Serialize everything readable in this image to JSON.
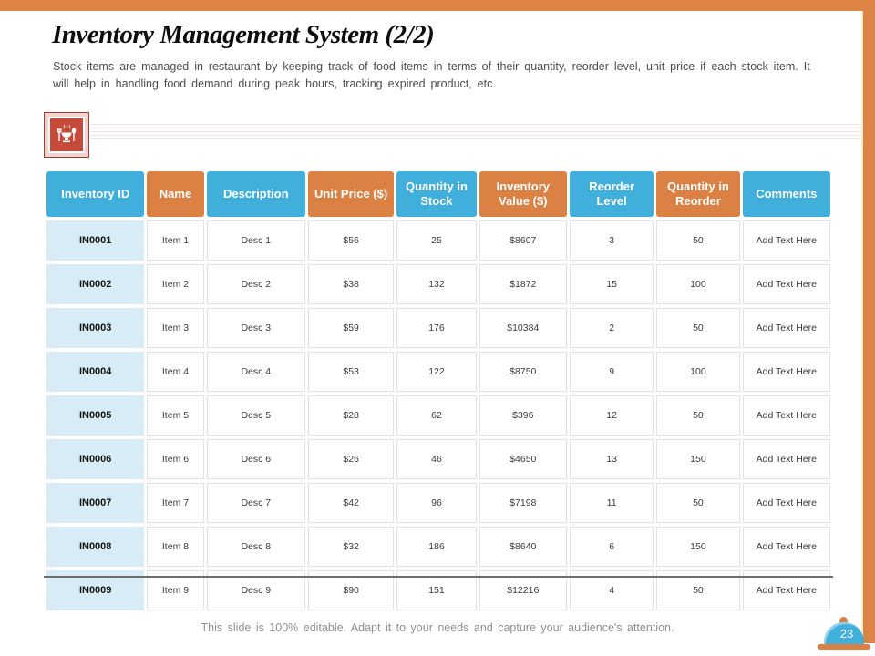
{
  "slide": {
    "title": "Inventory Management System (2/2)",
    "subtitle": "Stock items are managed in restaurant by keeping track of food items in terms of their quantity, reorder level, unit price if each stock item. It will help in handling food demand during peak hours, tracking expired product, etc.",
    "footer": "This slide is 100% editable. Adapt it to your needs and capture your audience's attention.",
    "page_number": "23"
  },
  "colors": {
    "accent_orange": "#DC8345",
    "accent_blue": "#41AFDC",
    "row_highlight_blue": "#D7ECF7",
    "icon_red": "#C54A39",
    "icon_pink_frame": "#F5D2CD",
    "cream_divider": "#F4EECB"
  },
  "icons": {
    "food_icon": "restaurant-dish-with-fork-and-spoon",
    "page_badge_icon": "food-cloche"
  },
  "table": {
    "columns": [
      {
        "label": "Inventory ID",
        "color": "blue"
      },
      {
        "label": "Name",
        "color": "orange"
      },
      {
        "label": "Description",
        "color": "blue"
      },
      {
        "label": "Unit Price ($)",
        "color": "orange"
      },
      {
        "label": "Quantity in Stock",
        "color": "blue"
      },
      {
        "label": "Inventory Value ($)",
        "color": "orange"
      },
      {
        "label": "Reorder Level",
        "color": "blue"
      },
      {
        "label": "Quantity in Reorder",
        "color": "orange"
      },
      {
        "label": "Comments",
        "color": "blue"
      }
    ],
    "rows": [
      [
        "IN0001",
        "Item 1",
        "Desc 1",
        "$56",
        "25",
        "$8607",
        "3",
        "50",
        "Add Text Here"
      ],
      [
        "IN0002",
        "Item 2",
        "Desc 2",
        "$38",
        "132",
        "$1872",
        "15",
        "100",
        "Add Text Here"
      ],
      [
        "IN0003",
        "Item 3",
        "Desc 3",
        "$59",
        "176",
        "$10384",
        "2",
        "50",
        "Add Text Here"
      ],
      [
        "IN0004",
        "Item 4",
        "Desc 4",
        "$53",
        "122",
        "$8750",
        "9",
        "100",
        "Add Text Here"
      ],
      [
        "IN0005",
        "Item 5",
        "Desc 5",
        "$28",
        "62",
        "$396",
        "12",
        "50",
        "Add Text Here"
      ],
      [
        "IN0006",
        "Item 6",
        "Desc 6",
        "$26",
        "46",
        "$4650",
        "13",
        "150",
        "Add Text Here"
      ],
      [
        "IN0007",
        "Item 7",
        "Desc 7",
        "$42",
        "96",
        "$7198",
        "11",
        "50",
        "Add Text Here"
      ],
      [
        "IN0008",
        "Item 8",
        "Desc 8",
        "$32",
        "186",
        "$8640",
        "6",
        "150",
        "Add Text Here"
      ],
      [
        "IN0009",
        "Item 9",
        "Desc 9",
        "$90",
        "151",
        "$12216",
        "4",
        "50",
        "Add Text Here"
      ]
    ]
  }
}
